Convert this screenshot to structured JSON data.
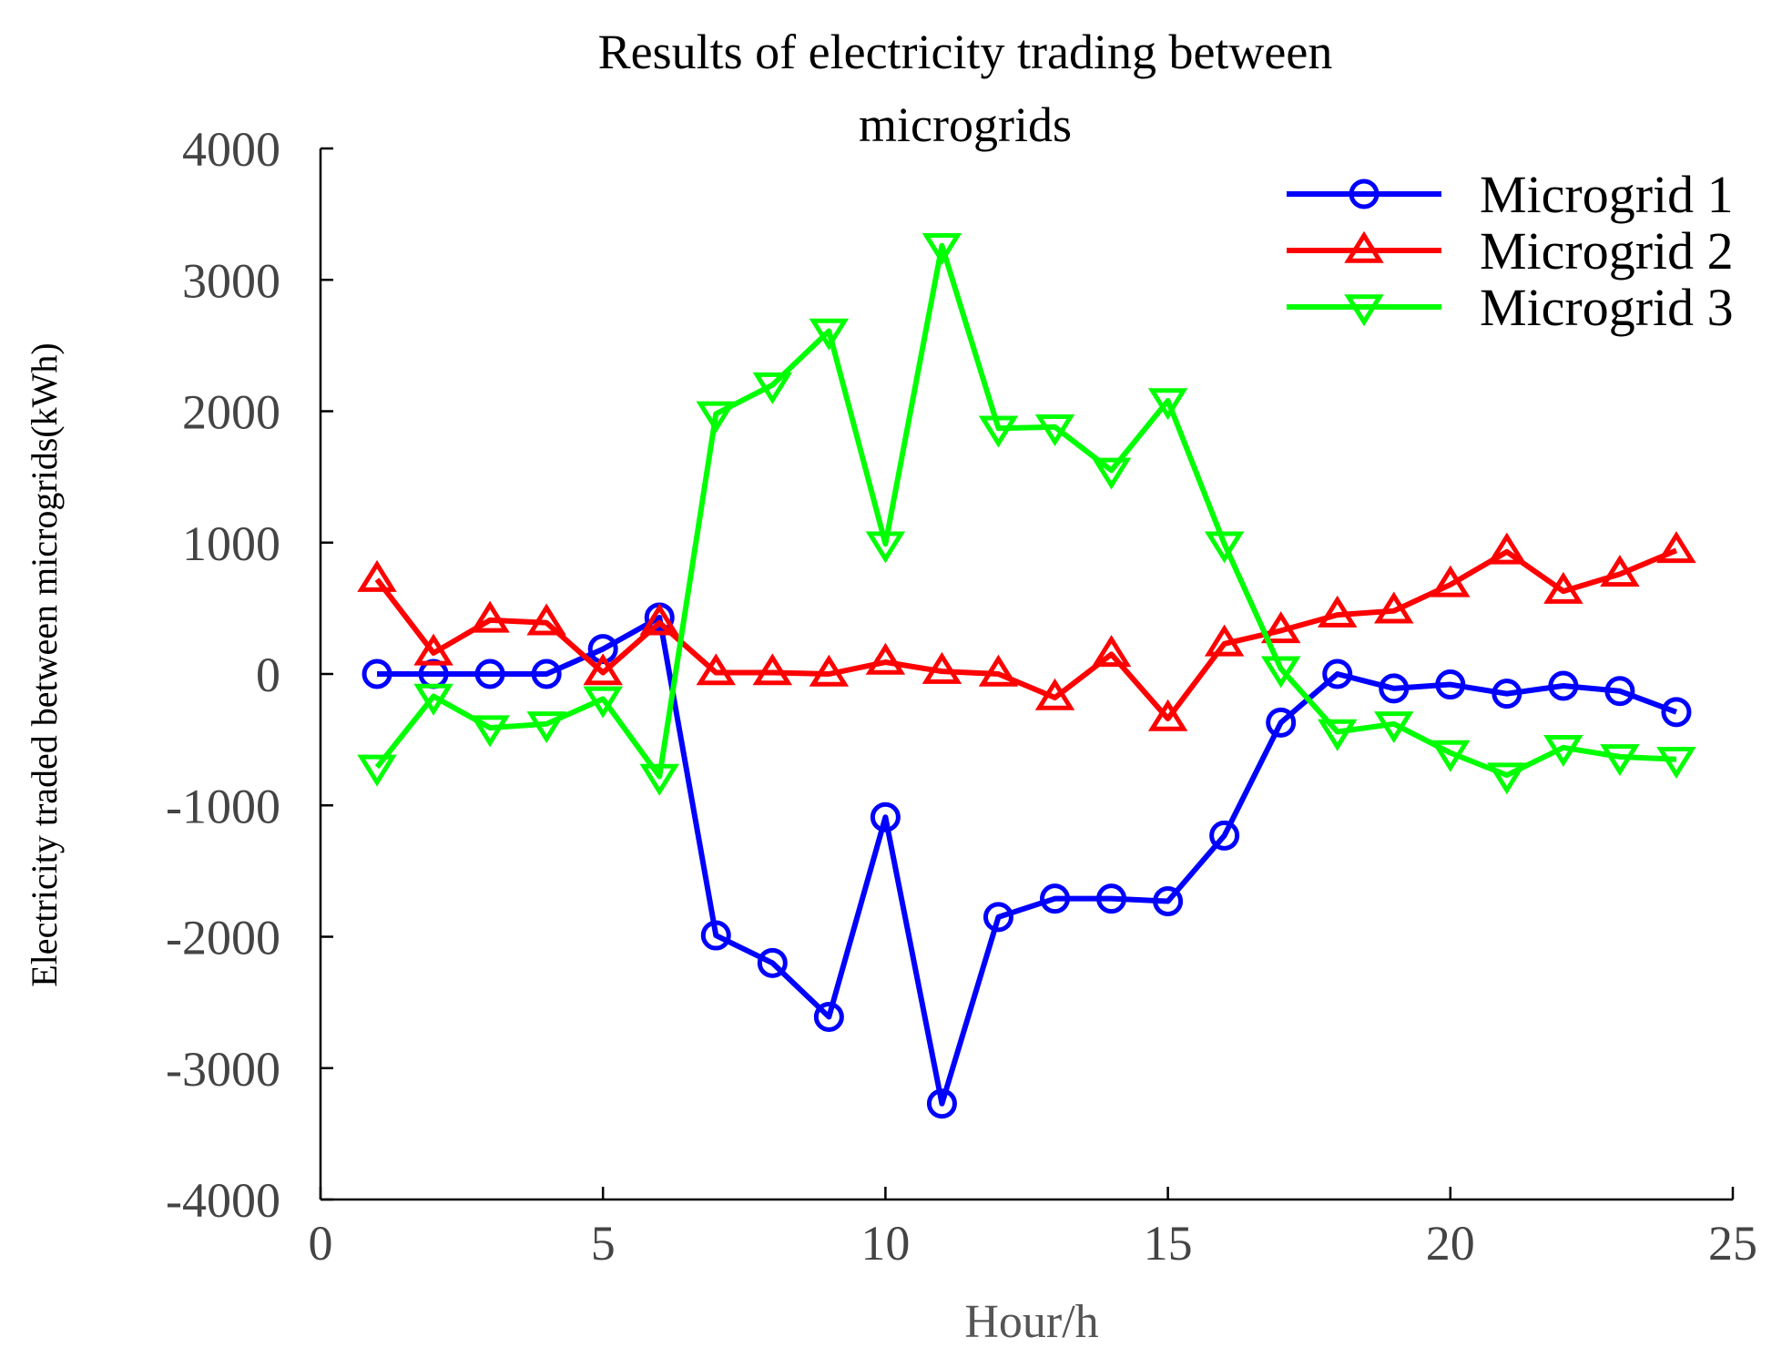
{
  "chart_data": {
    "type": "line",
    "title": [
      "Results of electricity trading between",
      "microgrids"
    ],
    "xlabel": "Hour/h",
    "ylabel": "Electricity traded between microgrids(kWh)",
    "xlim": [
      0,
      25
    ],
    "ylim": [
      -4000,
      4000
    ],
    "xticks": [
      "0",
      "5",
      "10",
      "15",
      "20",
      "25"
    ],
    "yticks": [
      "4000",
      "3000",
      "2000",
      "1000",
      "0",
      "-1000",
      "-2000",
      "-3000",
      "-4000"
    ],
    "grid": false,
    "legend_position": "top-right",
    "x": [
      1,
      2,
      3,
      4,
      5,
      6,
      7,
      8,
      9,
      10,
      11,
      12,
      13,
      14,
      15,
      16,
      17,
      18,
      19,
      20,
      21,
      22,
      23,
      24
    ],
    "series": [
      {
        "name": "Microgrid 1",
        "color": "#0000ff",
        "marker": "circle",
        "values": [
          0,
          0,
          0,
          0,
          190,
          430,
          -1990,
          -2200,
          -2610,
          -1090,
          -3270,
          -1850,
          -1710,
          -1710,
          -1730,
          -1230,
          -370,
          0,
          -110,
          -80,
          -150,
          -90,
          -130,
          -290
        ]
      },
      {
        "name": "Microgrid 2",
        "color": "#ff0000",
        "marker": "triangle-up",
        "values": [
          720,
          160,
          410,
          390,
          10,
          390,
          10,
          10,
          0,
          90,
          20,
          0,
          -180,
          150,
          -340,
          230,
          330,
          450,
          480,
          680,
          930,
          630,
          760,
          940
        ]
      },
      {
        "name": "Microgrid 3",
        "color": "#00ff00",
        "marker": "triangle-down",
        "values": [
          -710,
          -170,
          -410,
          -380,
          -190,
          -780,
          1980,
          2200,
          2610,
          990,
          3260,
          1870,
          1880,
          1550,
          2080,
          990,
          40,
          -440,
          -380,
          -600,
          -770,
          -560,
          -630,
          -650
        ]
      }
    ]
  }
}
